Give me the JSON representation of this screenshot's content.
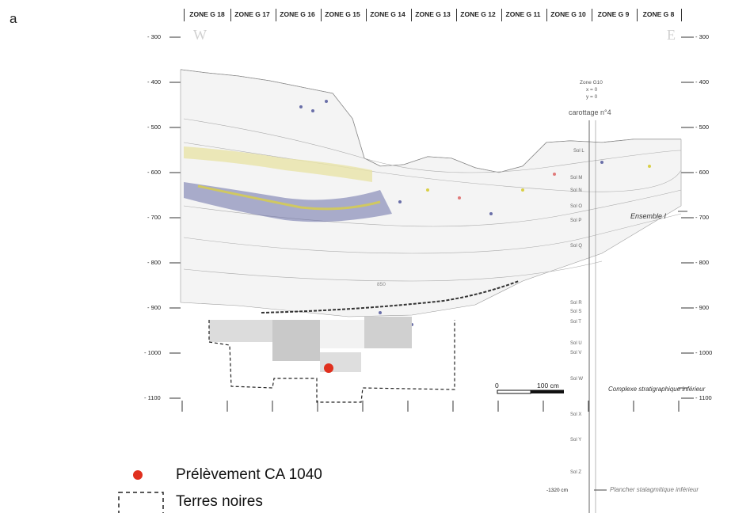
{
  "figure": {
    "panel_letter": "a",
    "zones": [
      "ZONE G 18",
      "ZONE G 17",
      "ZONE G 16",
      "ZONE G 15",
      "ZONE G 14",
      "ZONE G 13",
      "ZONE G 12",
      "ZONE G 11",
      "ZONE G 10",
      "ZONE G 9",
      "ZONE G 8"
    ],
    "depth_labels_left": [
      "- 300",
      "- 400",
      "- 500",
      "- 600",
      "- 700",
      "- 800",
      "- 900",
      "- 1000",
      "- 1100"
    ],
    "depth_labels_right": [
      "- 300",
      "- 400",
      "- 500",
      "- 600",
      "- 700",
      "- 800",
      "- 900",
      "- 1000",
      "- 1100"
    ],
    "west": "W",
    "east": "E",
    "zone_origin": [
      "Zone G10",
      "x = 0",
      "y = 0"
    ],
    "core_label": "carottage n°4",
    "sols": [
      "Sol L",
      "Sol M",
      "Sol N",
      "Sol O",
      "Sol P",
      "Sol Q",
      "Sol R",
      "Sol S",
      "Sol T",
      "Sol U",
      "Sol V",
      "Sol W",
      "Sol X",
      "Sol Y",
      "Sol Z"
    ],
    "ensemble_label": "Ensemble I",
    "complexe_label": "Complexe stratigraphique inférieur",
    "plancher_depth": "-1320 cm",
    "plancher_label": "Plancher stalagmitique inférieur",
    "scale_zero": "0",
    "scale_end": "100 cm",
    "inner_label": "850"
  },
  "legend": {
    "sample_label": "Prélèvement CA 1040",
    "sample_color": "#e0301e",
    "black_earth_label": "Terres noires"
  }
}
